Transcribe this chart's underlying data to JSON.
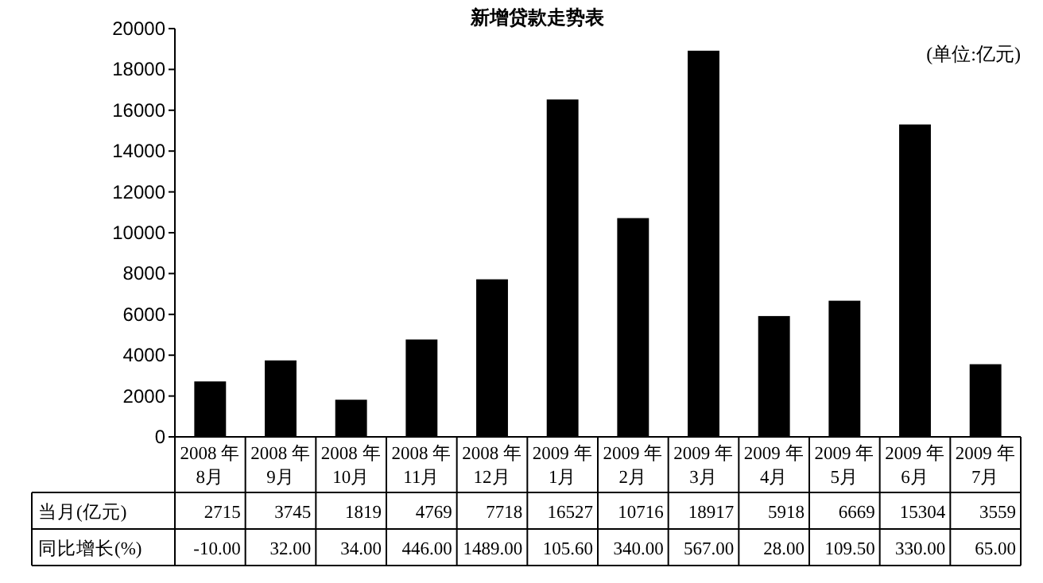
{
  "chart_data": {
    "type": "bar",
    "title": "新增贷款走势表",
    "categories": [
      "2008 年 8月",
      "2008 年 9月",
      "2008 年 10月",
      "2008 年 11月",
      "2008 年 12月",
      "2009 年 1月",
      "2009 年 2月",
      "2009 年 3月",
      "2009 年 4月",
      "2009 年 5月",
      "2009 年 6月",
      "2009 年 7月"
    ],
    "series": [
      {
        "name": "当月(亿元)",
        "color": "#000000",
        "values": [
          2715,
          3745,
          1819,
          4769,
          7718,
          16527,
          10716,
          18917,
          5918,
          6669,
          15304,
          3559
        ]
      }
    ],
    "ylim": [
      0,
      20000
    ],
    "yticks": [
      0,
      2000,
      4000,
      6000,
      8000,
      10000,
      12000,
      14000,
      16000,
      18000,
      20000
    ],
    "data_labels": true,
    "annotations": [
      "(单位:亿元)",
      "同比增长(%)",
      "-10.00",
      "32.00",
      "34.00",
      "446.00",
      "1489.00",
      "105.60",
      "340.00",
      "567.00",
      "28.00",
      "109.50",
      "330.00",
      "65.00"
    ]
  }
}
